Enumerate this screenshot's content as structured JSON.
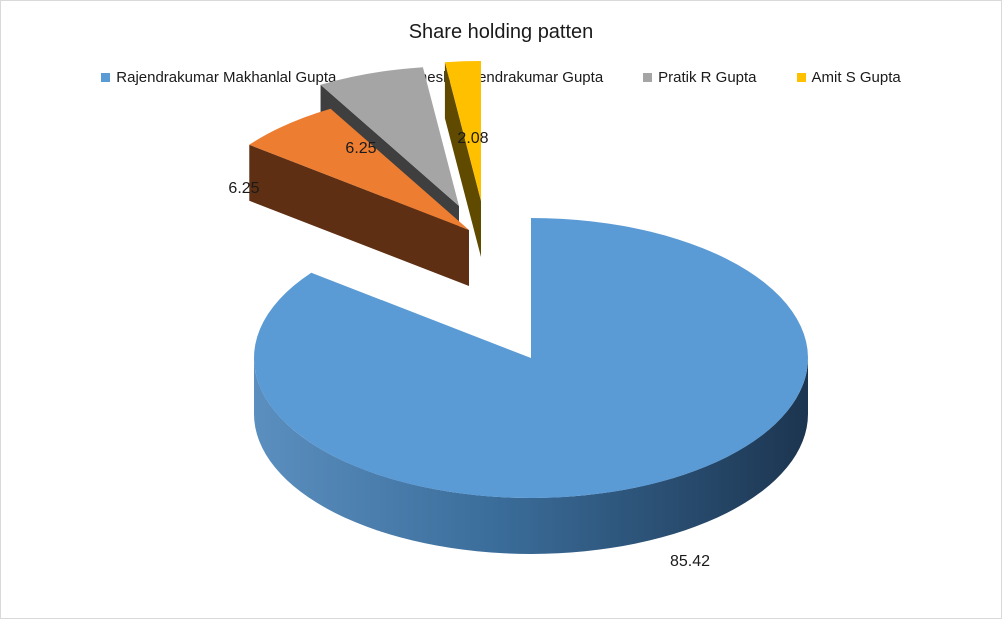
{
  "chart_data": {
    "type": "pie",
    "title": "Share holding patten",
    "legend_position": "top",
    "style": "3d-exploded",
    "slices": [
      {
        "name": "Rajendrakumar Makhanlal Gupta",
        "value": 85.42,
        "label": "85.42",
        "color": "#5b9bd5",
        "side": "#1f3a57"
      },
      {
        "name": "Pramesh Rajendrakumar Gupta",
        "value": 6.25,
        "label": "6.25",
        "color": "#ed7d31",
        "side": "#5e2f12"
      },
      {
        "name": "Pratik R Gupta",
        "value": 6.25,
        "label": "6.25",
        "color": "#a5a5a5",
        "side": "#3f3f3f"
      },
      {
        "name": "Amit S Gupta",
        "value": 2.08,
        "label": "2.08",
        "color": "#ffc000",
        "side": "#5f4a00"
      }
    ]
  }
}
